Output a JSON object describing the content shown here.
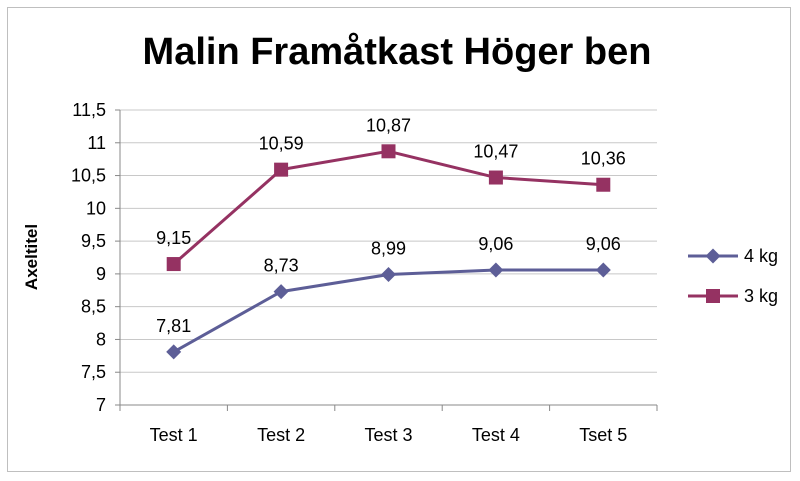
{
  "chart_data": {
    "type": "line",
    "title": "Malin Framåtkast Höger ben",
    "xlabel": "",
    "ylabel": "Axeltitel",
    "categories": [
      "Test 1",
      "Test 2",
      "Test 3",
      "Test 4",
      "Tset 5"
    ],
    "ylim": [
      7,
      11.5
    ],
    "yticks": [
      7,
      7.5,
      8,
      8.5,
      9,
      9.5,
      10,
      10.5,
      11,
      11.5
    ],
    "ytick_labels": [
      "7",
      "7,5",
      "8",
      "8,5",
      "9",
      "9,5",
      "10",
      "10,5",
      "11",
      "11,5"
    ],
    "grid": true,
    "legend_position": "right",
    "series": [
      {
        "name": "4 kg",
        "values": [
          7.81,
          8.73,
          8.99,
          9.06,
          9.06
        ],
        "labels": [
          "7,81",
          "8,73",
          "8,99",
          "9,06",
          "9,06"
        ],
        "color": "#5d5e97",
        "marker": "diamond"
      },
      {
        "name": "3 kg",
        "values": [
          9.15,
          10.59,
          10.87,
          10.47,
          10.36
        ],
        "labels": [
          "9,15",
          "10,59",
          "10,87",
          "10,47",
          "10,36"
        ],
        "color": "#953262",
        "marker": "square"
      }
    ]
  }
}
